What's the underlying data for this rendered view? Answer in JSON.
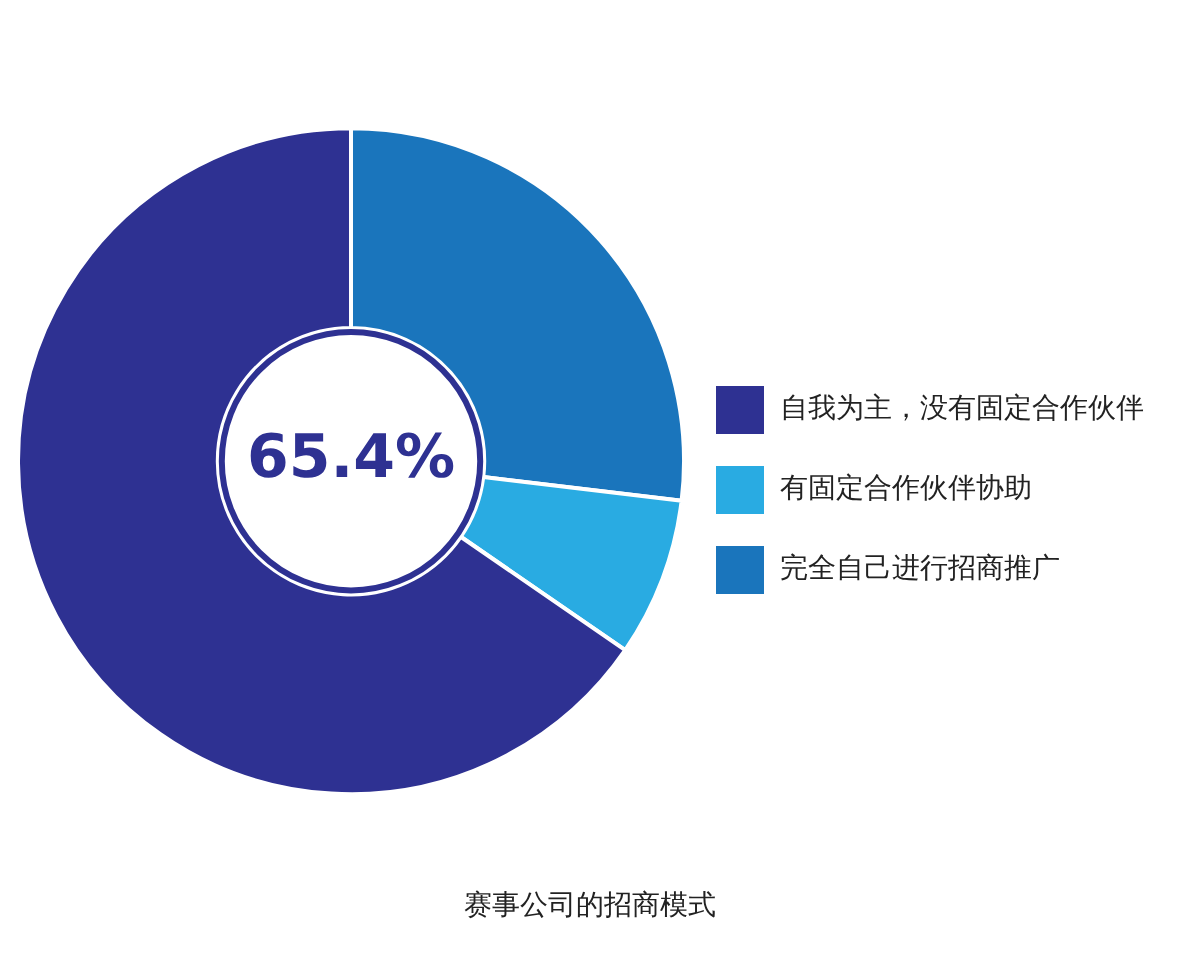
{
  "chart_data": {
    "type": "donut",
    "title": "赛事公司的招商模式",
    "categories": [
      "自我为主，没有固定合作伙伴",
      "有固定合作伙伴协助",
      "完全自己进行招商推广"
    ],
    "values": [
      65.4,
      7.7,
      26.9
    ],
    "colors": [
      "#2e3192",
      "#29abe2",
      "#1a75bc"
    ],
    "annotations": [
      "65.4%"
    ],
    "legend": "right"
  }
}
